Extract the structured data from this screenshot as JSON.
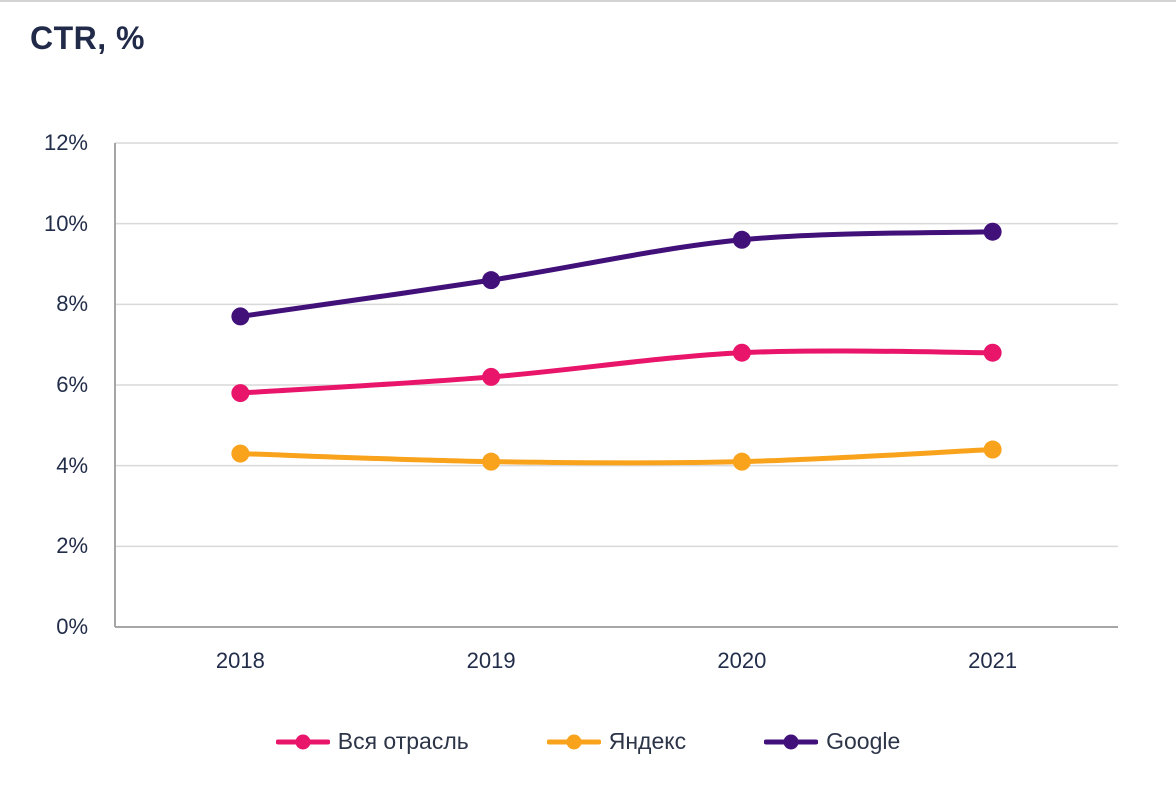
{
  "page": {
    "top_rule_color": "#d4d4d4",
    "background": "#ffffff"
  },
  "chart_data": {
    "type": "line",
    "title": "CTR, %",
    "x": [
      "2018",
      "2019",
      "2020",
      "2021"
    ],
    "xlabel": "",
    "ylabel": "",
    "ylim": [
      0,
      12
    ],
    "y_tick_step": 2,
    "y_tick_suffix": "%",
    "y_ticks": [
      "0%",
      "2%",
      "4%",
      "6%",
      "8%",
      "10%",
      "12%"
    ],
    "grid": true,
    "line_style": "smooth",
    "marker": "circle",
    "legend_position": "bottom-center",
    "series": [
      {
        "name": "Вся отрасль",
        "color": "#e8156b",
        "values": [
          5.8,
          6.2,
          6.8,
          6.8
        ]
      },
      {
        "name": "Яндекс",
        "color": "#f9a21b",
        "values": [
          4.3,
          4.1,
          4.1,
          4.4
        ]
      },
      {
        "name": "Google",
        "color": "#411179",
        "values": [
          7.7,
          8.6,
          9.6,
          9.8
        ]
      }
    ],
    "colors": {
      "grid": "#d9d9d9",
      "axis": "#a6a6a6",
      "tick_text": "#222d49",
      "title_text": "#212b49",
      "legend_text": "#2c3548"
    }
  }
}
